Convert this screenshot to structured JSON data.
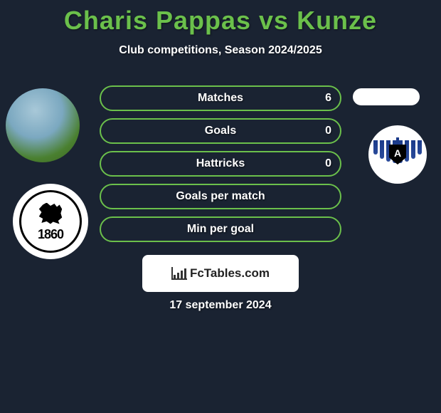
{
  "title": "Charis Pappas vs Kunze",
  "subtitle": "Club competitions, Season 2024/2025",
  "stats": [
    {
      "label": "Matches",
      "value": "6"
    },
    {
      "label": "Goals",
      "value": "0"
    },
    {
      "label": "Hattricks",
      "value": "0"
    },
    {
      "label": "Goals per match",
      "value": ""
    },
    {
      "label": "Min per goal",
      "value": ""
    }
  ],
  "club_left": {
    "year": "1860"
  },
  "club_right": {
    "letter": "A"
  },
  "footer": {
    "brand": "FcTables.com"
  },
  "date": "17 september 2024",
  "colors": {
    "background": "#1a2332",
    "accent": "#6bc04b",
    "text": "#ffffff",
    "footer_bg": "#ffffff"
  }
}
